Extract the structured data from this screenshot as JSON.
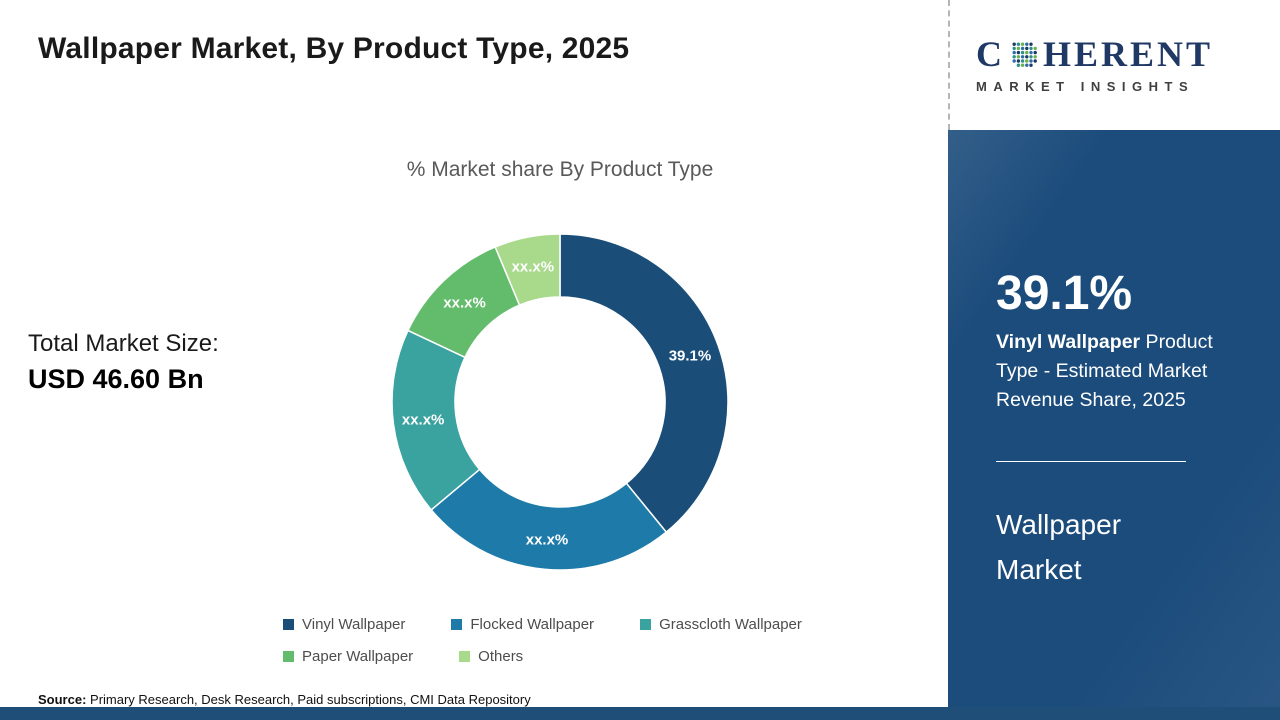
{
  "page": {
    "title": "Wallpaper Market, By Product Type, 2025"
  },
  "chart_data": {
    "type": "pie",
    "donut": true,
    "title": "% Market share By Product Type",
    "legend_position": "bottom",
    "segments": [
      {
        "label": "Vinyl Wallpaper",
        "value": 39.1,
        "display": "39.1%",
        "color": "#1a4e78"
      },
      {
        "label": "Flocked Wallpaper",
        "value": 24.8,
        "display": "xx.x%",
        "color": "#1e7aa8"
      },
      {
        "label": "Grasscloth Wallpaper",
        "value": 18.1,
        "display": "xx.x%",
        "color": "#3aa3a0"
      },
      {
        "label": "Paper Wallpaper",
        "value": 11.7,
        "display": "xx.x%",
        "color": "#62bc6b"
      },
      {
        "label": "Others",
        "value": 6.3,
        "display": "xx.x%",
        "color": "#a9d98b"
      }
    ]
  },
  "market_size": {
    "label": "Total Market Size:",
    "value": "USD 46.60 Bn"
  },
  "source": {
    "label": "Source:",
    "text": " Primary Research, Desk Research, Paid subscriptions, CMI Data Repository"
  },
  "logo": {
    "letter_first": "C",
    "letters_rest": "HERENT",
    "tagline": "MARKET INSIGHTS",
    "dot_colors": [
      "#1f3864",
      "#2f8f8f",
      "#6ab04c",
      "#2a6fa8"
    ]
  },
  "side_panel": {
    "stat_value": "39.1%",
    "stat_label_bold": "Vinyl Wallpaper",
    "stat_label_rest": " Product Type - Estimated Market Revenue Share, 2025",
    "market_name": "Wallpaper Market"
  }
}
